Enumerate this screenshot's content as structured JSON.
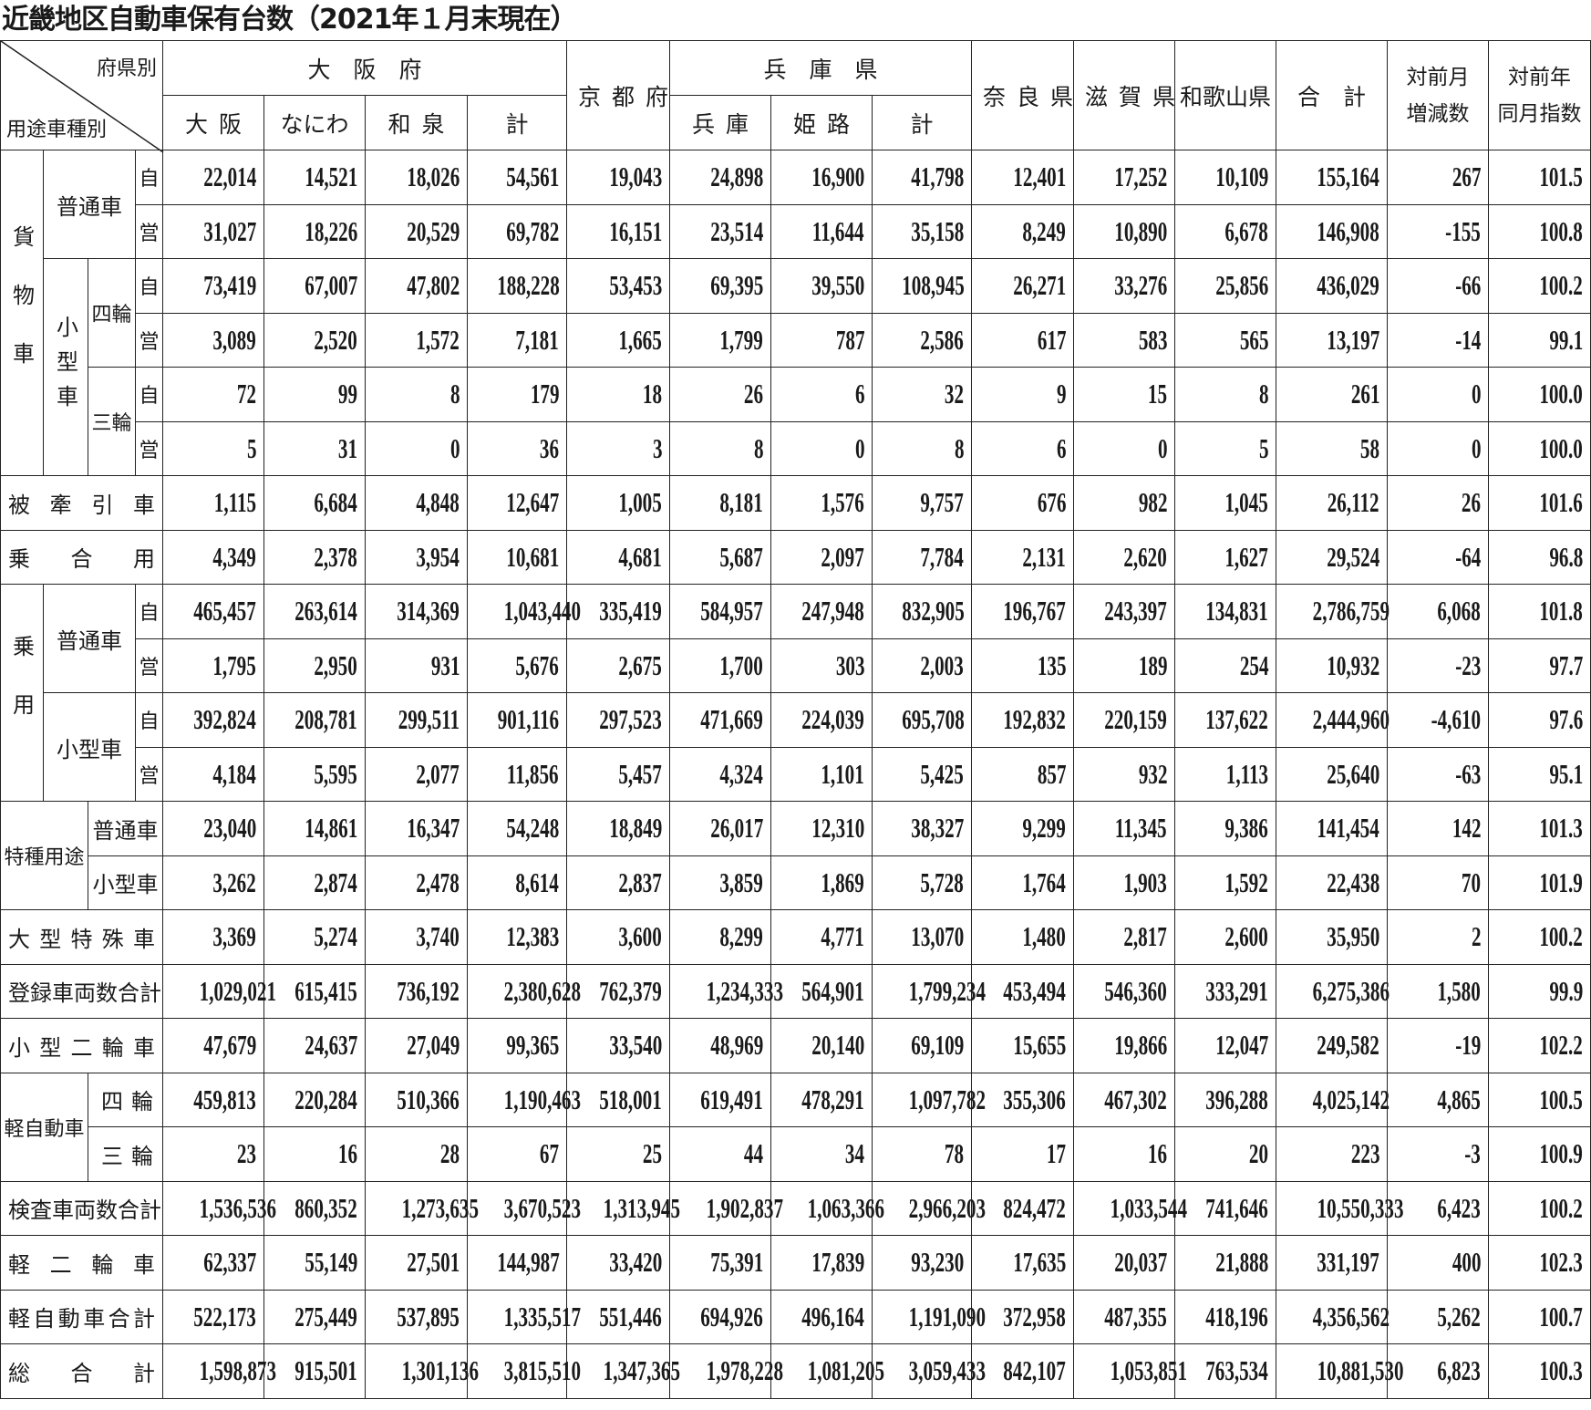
{
  "title": "近畿地区自動車保有台数（2021年１月末現在）",
  "header": {
    "corner_top": "府県別",
    "corner_bottom": "用途車種別",
    "osaka": "大　阪　府",
    "kyoto": "京都府",
    "hyogo": "兵　庫　県",
    "nara": "奈良県",
    "shiga": "滋賀県",
    "wakayama": "和歌山県",
    "total": "合　計",
    "mom_line1": "対前月",
    "mom_line2": "増減数",
    "yoy_line1": "対前年",
    "yoy_line2": "同月指数",
    "osaka_sub": [
      "大阪",
      "なにわ",
      "和泉",
      "計"
    ],
    "hyogo_sub": [
      "兵庫",
      "姫路",
      "計"
    ]
  },
  "rows": [
    {
      "labels": [
        "貨物車",
        "普通車",
        "自"
      ],
      "values": [
        "22,014",
        "14,521",
        "18,026",
        "54,561",
        "19,043",
        "24,898",
        "16,900",
        "41,798",
        "12,401",
        "17,252",
        "10,109",
        "155,164",
        "267",
        "101.5"
      ]
    },
    {
      "labels": [
        "営"
      ],
      "values": [
        "31,027",
        "18,226",
        "20,529",
        "69,782",
        "16,151",
        "23,514",
        "11,644",
        "35,158",
        "8,249",
        "10,890",
        "6,678",
        "146,908",
        "-155",
        "100.8"
      ]
    },
    {
      "labels": [
        "小型車",
        "四輪",
        "自"
      ],
      "values": [
        "73,419",
        "67,007",
        "47,802",
        "188,228",
        "53,453",
        "69,395",
        "39,550",
        "108,945",
        "26,271",
        "33,276",
        "25,856",
        "436,029",
        "-66",
        "100.2"
      ]
    },
    {
      "labels": [
        "営"
      ],
      "values": [
        "3,089",
        "2,520",
        "1,572",
        "7,181",
        "1,665",
        "1,799",
        "787",
        "2,586",
        "617",
        "583",
        "565",
        "13,197",
        "-14",
        "99.1"
      ]
    },
    {
      "labels": [
        "三輪",
        "自"
      ],
      "values": [
        "72",
        "99",
        "8",
        "179",
        "18",
        "26",
        "6",
        "32",
        "9",
        "15",
        "8",
        "261",
        "0",
        "100.0"
      ]
    },
    {
      "labels": [
        "営"
      ],
      "values": [
        "5",
        "31",
        "0",
        "36",
        "3",
        "8",
        "0",
        "8",
        "6",
        "0",
        "5",
        "58",
        "0",
        "100.0"
      ]
    },
    {
      "labels": [
        "被牽引車"
      ],
      "values": [
        "1,115",
        "6,684",
        "4,848",
        "12,647",
        "1,005",
        "8,181",
        "1,576",
        "9,757",
        "676",
        "982",
        "1,045",
        "26,112",
        "26",
        "101.6"
      ]
    },
    {
      "labels": [
        "乗合用"
      ],
      "values": [
        "4,349",
        "2,378",
        "3,954",
        "10,681",
        "4,681",
        "5,687",
        "2,097",
        "7,784",
        "2,131",
        "2,620",
        "1,627",
        "29,524",
        "-64",
        "96.8"
      ]
    },
    {
      "labels": [
        "乗用",
        "普通車",
        "自"
      ],
      "values": [
        "465,457",
        "263,614",
        "314,369",
        "1,043,440",
        "335,419",
        "584,957",
        "247,948",
        "832,905",
        "196,767",
        "243,397",
        "134,831",
        "2,786,759",
        "6,068",
        "101.8"
      ]
    },
    {
      "labels": [
        "営"
      ],
      "values": [
        "1,795",
        "2,950",
        "931",
        "5,676",
        "2,675",
        "1,700",
        "303",
        "2,003",
        "135",
        "189",
        "254",
        "10,932",
        "-23",
        "97.7"
      ]
    },
    {
      "labels": [
        "小型車",
        "自"
      ],
      "values": [
        "392,824",
        "208,781",
        "299,511",
        "901,116",
        "297,523",
        "471,669",
        "224,039",
        "695,708",
        "192,832",
        "220,159",
        "137,622",
        "2,444,960",
        "-4,610",
        "97.6"
      ]
    },
    {
      "labels": [
        "営"
      ],
      "values": [
        "4,184",
        "5,595",
        "2,077",
        "11,856",
        "5,457",
        "4,324",
        "1,101",
        "5,425",
        "857",
        "932",
        "1,113",
        "25,640",
        "-63",
        "95.1"
      ]
    },
    {
      "labels": [
        "特種用途",
        "普通車"
      ],
      "values": [
        "23,040",
        "14,861",
        "16,347",
        "54,248",
        "18,849",
        "26,017",
        "12,310",
        "38,327",
        "9,299",
        "11,345",
        "9,386",
        "141,454",
        "142",
        "101.3"
      ]
    },
    {
      "labels": [
        "小型車"
      ],
      "values": [
        "3,262",
        "2,874",
        "2,478",
        "8,614",
        "2,837",
        "3,859",
        "1,869",
        "5,728",
        "1,764",
        "1,903",
        "1,592",
        "22,438",
        "70",
        "101.9"
      ]
    },
    {
      "labels": [
        "大型特殊車"
      ],
      "values": [
        "3,369",
        "5,274",
        "3,740",
        "12,383",
        "3,600",
        "8,299",
        "4,771",
        "13,070",
        "1,480",
        "2,817",
        "2,600",
        "35,950",
        "2",
        "100.2"
      ]
    },
    {
      "labels": [
        "登録車両数合計"
      ],
      "values": [
        "1,029,021",
        "615,415",
        "736,192",
        "2,380,628",
        "762,379",
        "1,234,333",
        "564,901",
        "1,799,234",
        "453,494",
        "546,360",
        "333,291",
        "6,275,386",
        "1,580",
        "99.9"
      ]
    },
    {
      "labels": [
        "小型二輪車"
      ],
      "values": [
        "47,679",
        "24,637",
        "27,049",
        "99,365",
        "33,540",
        "48,969",
        "20,140",
        "69,109",
        "15,655",
        "19,866",
        "12,047",
        "249,582",
        "-19",
        "102.2"
      ]
    },
    {
      "labels": [
        "軽自動車",
        "四輪"
      ],
      "values": [
        "459,813",
        "220,284",
        "510,366",
        "1,190,463",
        "518,001",
        "619,491",
        "478,291",
        "1,097,782",
        "355,306",
        "467,302",
        "396,288",
        "4,025,142",
        "4,865",
        "100.5"
      ]
    },
    {
      "labels": [
        "三輪"
      ],
      "values": [
        "23",
        "16",
        "28",
        "67",
        "25",
        "44",
        "34",
        "78",
        "17",
        "16",
        "20",
        "223",
        "-3",
        "100.9"
      ]
    },
    {
      "labels": [
        "検査車両数合計"
      ],
      "values": [
        "1,536,536",
        "860,352",
        "1,273,635",
        "3,670,523",
        "1,313,945",
        "1,902,837",
        "1,063,366",
        "2,966,203",
        "824,472",
        "1,033,544",
        "741,646",
        "10,550,333",
        "6,423",
        "100.2"
      ]
    },
    {
      "labels": [
        "軽二輪車"
      ],
      "values": [
        "62,337",
        "55,149",
        "27,501",
        "144,987",
        "33,420",
        "75,391",
        "17,839",
        "93,230",
        "17,635",
        "20,037",
        "21,888",
        "331,197",
        "400",
        "102.3"
      ]
    },
    {
      "labels": [
        "軽自動車合計"
      ],
      "values": [
        "522,173",
        "275,449",
        "537,895",
        "1,335,517",
        "551,446",
        "694,926",
        "496,164",
        "1,191,090",
        "372,958",
        "487,355",
        "418,196",
        "4,356,562",
        "5,262",
        "100.7"
      ]
    },
    {
      "labels": [
        "総合計"
      ],
      "values": [
        "1,598,873",
        "915,501",
        "1,301,136",
        "3,815,510",
        "1,347,365",
        "1,978,228",
        "1,081,205",
        "3,059,433",
        "842,107",
        "1,053,851",
        "763,534",
        "10,881,530",
        "6,823",
        "100.3"
      ]
    }
  ]
}
